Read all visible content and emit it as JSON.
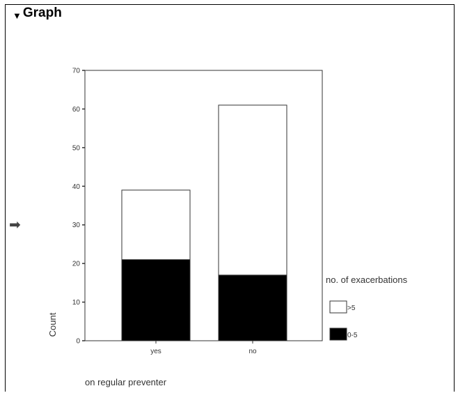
{
  "header": {
    "title": "Graph",
    "collapse_icon": "triangle-down-icon",
    "nav_icon": "arrow-right-icon"
  },
  "chart_data": {
    "type": "bar",
    "stacked": true,
    "categories": [
      "yes",
      "no"
    ],
    "series": [
      {
        "name": "0-5",
        "values": [
          21,
          17
        ],
        "color": "#000000"
      },
      {
        "name": ">5",
        "values": [
          18,
          44
        ],
        "color": "#ffffff"
      }
    ],
    "xlabel": "on regular preventer",
    "ylabel": "Count",
    "ylim": [
      0,
      70
    ],
    "yticks": [
      0,
      10,
      20,
      30,
      40,
      50,
      60,
      70
    ],
    "legend_title": "no. of exacerbations",
    "legend_position": "right",
    "grid": false
  }
}
